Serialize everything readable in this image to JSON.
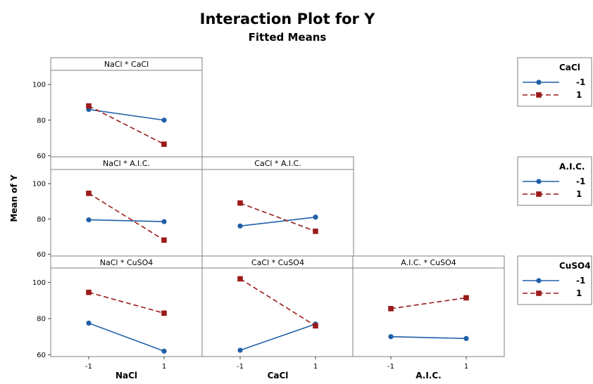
{
  "chart_data": {
    "type": "line",
    "title": "Interaction Plot for Y",
    "subtitle": "Fitted Means",
    "ylabel": "Mean of Y",
    "ylim": [
      59,
      108
    ],
    "y_ticks": [
      "60",
      "80",
      "100"
    ],
    "x_categories": [
      "-1",
      "1"
    ],
    "factors": [
      "NaCl",
      "CaCl",
      "A.I.C.",
      "CuSO4"
    ],
    "xlabels": [
      "NaCl",
      "CaCl",
      "A.I.C."
    ],
    "series_colors": {
      "-1": "#1f5fa8",
      "1": "#9b1a1a"
    },
    "panels": [
      {
        "label": "NaCl * CaCl",
        "row": 0,
        "col": 0,
        "series": [
          {
            "level": "-1",
            "values": [
              86,
              80
            ]
          },
          {
            "level": "1",
            "values": [
              88,
              66.5
            ]
          }
        ]
      },
      {
        "label": "NaCl * A.I.C.",
        "row": 1,
        "col": 0,
        "series": [
          {
            "level": "-1",
            "values": [
              79.5,
              78.5
            ]
          },
          {
            "level": "1",
            "values": [
              94.5,
              68
            ]
          }
        ]
      },
      {
        "label": "CaCl * A.I.C.",
        "row": 1,
        "col": 1,
        "series": [
          {
            "level": "-1",
            "values": [
              76,
              81
            ]
          },
          {
            "level": "1",
            "values": [
              89,
              73
            ]
          }
        ]
      },
      {
        "label": "NaCl * CuSO4",
        "row": 2,
        "col": 0,
        "series": [
          {
            "level": "-1",
            "values": [
              77.5,
              62
            ]
          },
          {
            "level": "1",
            "values": [
              94.5,
              83
            ]
          }
        ]
      },
      {
        "label": "CaCl * CuSO4",
        "row": 2,
        "col": 1,
        "series": [
          {
            "level": "-1",
            "values": [
              62.5,
              77
            ]
          },
          {
            "level": "1",
            "values": [
              102,
              76
            ]
          }
        ]
      },
      {
        "label": "A.I.C. * CuSO4",
        "row": 2,
        "col": 2,
        "series": [
          {
            "level": "-1",
            "values": [
              70,
              69
            ]
          },
          {
            "level": "1",
            "values": [
              85.5,
              91.5
            ]
          }
        ]
      }
    ],
    "legends": [
      {
        "title": "CaCl",
        "entries": [
          "-1",
          "1"
        ]
      },
      {
        "title": "A.I.C.",
        "entries": [
          "-1",
          "1"
        ]
      },
      {
        "title": "CuSO4",
        "entries": [
          "-1",
          "1"
        ]
      }
    ]
  }
}
